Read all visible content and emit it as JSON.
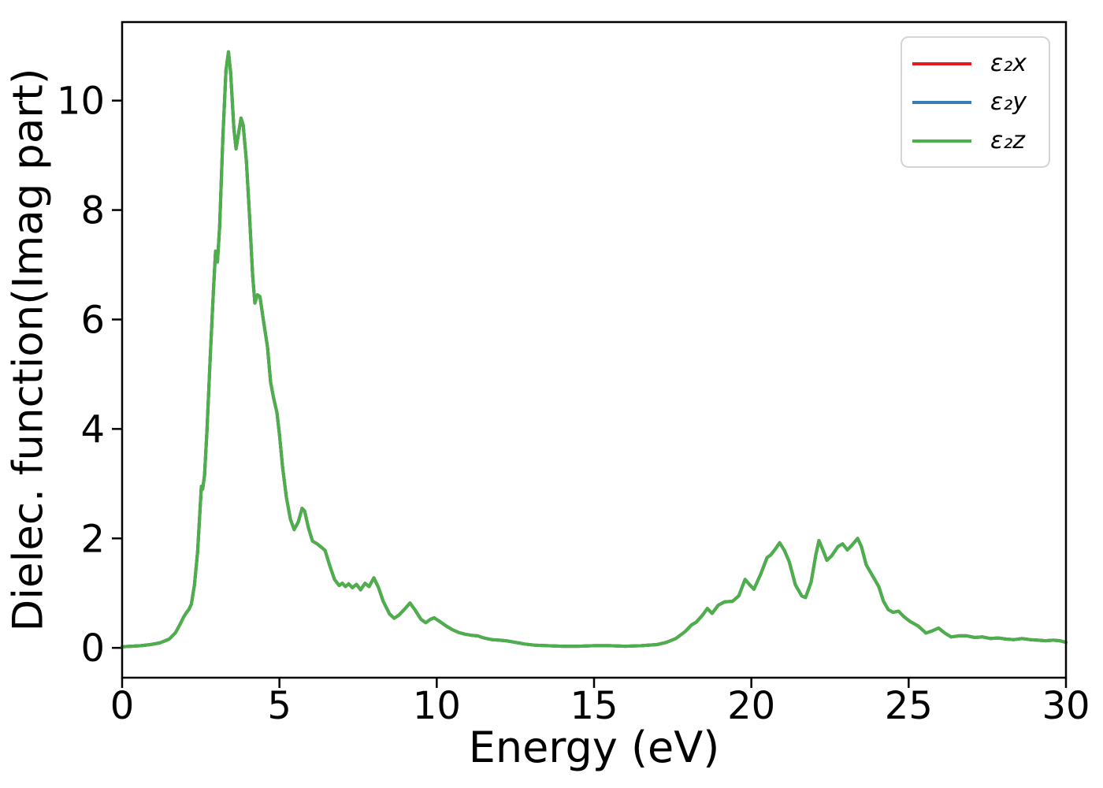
{
  "figure": {
    "xlabel": "Energy (eV)",
    "ylabel": "Dielec. function(Imag part)"
  },
  "legend": {
    "items": [
      {
        "label": "ε₂x",
        "color": "#e41a1c"
      },
      {
        "label": "ε₂y",
        "color": "#377eb8"
      },
      {
        "label": "ε₂z",
        "color": "#4daf4a"
      }
    ]
  },
  "chart_data": {
    "type": "line",
    "title": "",
    "xlabel": "Energy (eV)",
    "ylabel": "Dielec. function(Imag part)",
    "xlim": [
      0,
      30
    ],
    "ylim": [
      -0.545,
      11.435
    ],
    "x_ticks": [
      0,
      5,
      10,
      15,
      20,
      25,
      30
    ],
    "y_ticks": [
      0,
      2,
      4,
      6,
      8,
      10
    ],
    "grid": false,
    "legend_position": "upper right",
    "note": "The three series overlap exactly; only the last-drawn green curve (ε₂z) is visible.",
    "x": [
      0.0,
      0.3,
      0.6,
      0.9,
      1.2,
      1.5,
      1.7,
      1.85,
      1.95,
      2.05,
      2.12,
      2.2,
      2.3,
      2.4,
      2.47,
      2.52,
      2.56,
      2.62,
      2.7,
      2.8,
      2.9,
      2.97,
      3.03,
      3.1,
      3.2,
      3.3,
      3.38,
      3.45,
      3.55,
      3.62,
      3.7,
      3.78,
      3.85,
      3.95,
      4.05,
      4.15,
      4.22,
      4.3,
      4.38,
      4.5,
      4.62,
      4.72,
      4.82,
      4.92,
      5.0,
      5.1,
      5.22,
      5.35,
      5.47,
      5.6,
      5.72,
      5.8,
      5.92,
      6.05,
      6.2,
      6.35,
      6.45,
      6.6,
      6.75,
      6.9,
      7.0,
      7.1,
      7.2,
      7.32,
      7.45,
      7.58,
      7.72,
      7.85,
      8.0,
      8.15,
      8.3,
      8.5,
      8.65,
      8.8,
      9.0,
      9.15,
      9.3,
      9.5,
      9.65,
      9.8,
      9.92,
      10.1,
      10.3,
      10.5,
      10.7,
      10.9,
      11.1,
      11.3,
      11.5,
      11.75,
      12.0,
      12.2,
      12.5,
      12.8,
      13.1,
      13.5,
      14.0,
      14.5,
      15.0,
      15.5,
      16.0,
      16.5,
      17.0,
      17.3,
      17.6,
      17.9,
      18.1,
      18.25,
      18.45,
      18.6,
      18.75,
      18.95,
      19.15,
      19.4,
      19.6,
      19.8,
      19.95,
      20.08,
      20.3,
      20.5,
      20.62,
      20.78,
      20.9,
      21.05,
      21.2,
      21.4,
      21.6,
      21.72,
      21.9,
      22.05,
      22.15,
      22.28,
      22.4,
      22.55,
      22.75,
      22.9,
      23.05,
      23.2,
      23.38,
      23.5,
      23.65,
      23.85,
      24.05,
      24.2,
      24.35,
      24.5,
      24.68,
      24.85,
      25.05,
      25.3,
      25.55,
      25.75,
      25.95,
      26.15,
      26.35,
      26.6,
      26.85,
      27.1,
      27.35,
      27.6,
      27.85,
      28.1,
      28.35,
      28.6,
      28.85,
      29.1,
      29.35,
      29.6,
      29.8,
      30.0
    ],
    "series": [
      {
        "name": "ε₂x",
        "color": "#e41a1c",
        "values": [
          0.02,
          0.03,
          0.04,
          0.06,
          0.09,
          0.16,
          0.28,
          0.44,
          0.56,
          0.65,
          0.7,
          0.8,
          1.15,
          1.75,
          2.45,
          2.95,
          2.9,
          3.15,
          4.0,
          5.3,
          6.5,
          7.25,
          7.05,
          7.7,
          9.3,
          10.55,
          10.89,
          10.5,
          9.5,
          9.12,
          9.4,
          9.68,
          9.55,
          8.9,
          7.9,
          6.8,
          6.3,
          6.45,
          6.42,
          5.95,
          5.5,
          4.85,
          4.55,
          4.3,
          3.9,
          3.3,
          2.75,
          2.35,
          2.16,
          2.3,
          2.55,
          2.5,
          2.2,
          1.95,
          1.9,
          1.83,
          1.78,
          1.5,
          1.25,
          1.14,
          1.18,
          1.12,
          1.17,
          1.1,
          1.16,
          1.06,
          1.18,
          1.12,
          1.28,
          1.1,
          0.85,
          0.62,
          0.54,
          0.6,
          0.72,
          0.82,
          0.7,
          0.52,
          0.46,
          0.52,
          0.55,
          0.48,
          0.4,
          0.33,
          0.28,
          0.25,
          0.23,
          0.22,
          0.18,
          0.15,
          0.14,
          0.13,
          0.1,
          0.07,
          0.05,
          0.04,
          0.03,
          0.03,
          0.04,
          0.04,
          0.03,
          0.04,
          0.06,
          0.1,
          0.17,
          0.3,
          0.42,
          0.47,
          0.6,
          0.72,
          0.63,
          0.78,
          0.84,
          0.85,
          0.95,
          1.25,
          1.15,
          1.07,
          1.35,
          1.65,
          1.7,
          1.82,
          1.92,
          1.78,
          1.58,
          1.15,
          0.95,
          0.92,
          1.2,
          1.7,
          1.96,
          1.78,
          1.6,
          1.68,
          1.85,
          1.9,
          1.79,
          1.88,
          2.0,
          1.85,
          1.52,
          1.32,
          1.12,
          0.85,
          0.7,
          0.65,
          0.67,
          0.57,
          0.48,
          0.4,
          0.27,
          0.31,
          0.36,
          0.27,
          0.2,
          0.22,
          0.22,
          0.19,
          0.2,
          0.17,
          0.18,
          0.16,
          0.15,
          0.17,
          0.15,
          0.14,
          0.13,
          0.14,
          0.13,
          0.1
        ]
      },
      {
        "name": "ε₂y",
        "color": "#377eb8",
        "values": [
          0.02,
          0.03,
          0.04,
          0.06,
          0.09,
          0.16,
          0.28,
          0.44,
          0.56,
          0.65,
          0.7,
          0.8,
          1.15,
          1.75,
          2.45,
          2.95,
          2.9,
          3.15,
          4.0,
          5.3,
          6.5,
          7.25,
          7.05,
          7.7,
          9.3,
          10.55,
          10.89,
          10.5,
          9.5,
          9.12,
          9.4,
          9.68,
          9.55,
          8.9,
          7.9,
          6.8,
          6.3,
          6.45,
          6.42,
          5.95,
          5.5,
          4.85,
          4.55,
          4.3,
          3.9,
          3.3,
          2.75,
          2.35,
          2.16,
          2.3,
          2.55,
          2.5,
          2.2,
          1.95,
          1.9,
          1.83,
          1.78,
          1.5,
          1.25,
          1.14,
          1.18,
          1.12,
          1.17,
          1.1,
          1.16,
          1.06,
          1.18,
          1.12,
          1.28,
          1.1,
          0.85,
          0.62,
          0.54,
          0.6,
          0.72,
          0.82,
          0.7,
          0.52,
          0.46,
          0.52,
          0.55,
          0.48,
          0.4,
          0.33,
          0.28,
          0.25,
          0.23,
          0.22,
          0.18,
          0.15,
          0.14,
          0.13,
          0.1,
          0.07,
          0.05,
          0.04,
          0.03,
          0.03,
          0.04,
          0.04,
          0.03,
          0.04,
          0.06,
          0.1,
          0.17,
          0.3,
          0.42,
          0.47,
          0.6,
          0.72,
          0.63,
          0.78,
          0.84,
          0.85,
          0.95,
          1.25,
          1.15,
          1.07,
          1.35,
          1.65,
          1.7,
          1.82,
          1.92,
          1.78,
          1.58,
          1.15,
          0.95,
          0.92,
          1.2,
          1.7,
          1.96,
          1.78,
          1.6,
          1.68,
          1.85,
          1.9,
          1.79,
          1.88,
          2.0,
          1.85,
          1.52,
          1.32,
          1.12,
          0.85,
          0.7,
          0.65,
          0.67,
          0.57,
          0.48,
          0.4,
          0.27,
          0.31,
          0.36,
          0.27,
          0.2,
          0.22,
          0.22,
          0.19,
          0.2,
          0.17,
          0.18,
          0.16,
          0.15,
          0.17,
          0.15,
          0.14,
          0.13,
          0.14,
          0.13,
          0.1
        ]
      },
      {
        "name": "ε₂z",
        "color": "#4daf4a",
        "values": [
          0.02,
          0.03,
          0.04,
          0.06,
          0.09,
          0.16,
          0.28,
          0.44,
          0.56,
          0.65,
          0.7,
          0.8,
          1.15,
          1.75,
          2.45,
          2.95,
          2.9,
          3.15,
          4.0,
          5.3,
          6.5,
          7.25,
          7.05,
          7.7,
          9.3,
          10.55,
          10.89,
          10.5,
          9.5,
          9.12,
          9.4,
          9.68,
          9.55,
          8.9,
          7.9,
          6.8,
          6.3,
          6.45,
          6.42,
          5.95,
          5.5,
          4.85,
          4.55,
          4.3,
          3.9,
          3.3,
          2.75,
          2.35,
          2.16,
          2.3,
          2.55,
          2.5,
          2.2,
          1.95,
          1.9,
          1.83,
          1.78,
          1.5,
          1.25,
          1.14,
          1.18,
          1.12,
          1.17,
          1.1,
          1.16,
          1.06,
          1.18,
          1.12,
          1.28,
          1.1,
          0.85,
          0.62,
          0.54,
          0.6,
          0.72,
          0.82,
          0.7,
          0.52,
          0.46,
          0.52,
          0.55,
          0.48,
          0.4,
          0.33,
          0.28,
          0.25,
          0.23,
          0.22,
          0.18,
          0.15,
          0.14,
          0.13,
          0.1,
          0.07,
          0.05,
          0.04,
          0.03,
          0.03,
          0.04,
          0.04,
          0.03,
          0.04,
          0.06,
          0.1,
          0.17,
          0.3,
          0.42,
          0.47,
          0.6,
          0.72,
          0.63,
          0.78,
          0.84,
          0.85,
          0.95,
          1.25,
          1.15,
          1.07,
          1.35,
          1.65,
          1.7,
          1.82,
          1.92,
          1.78,
          1.58,
          1.15,
          0.95,
          0.92,
          1.2,
          1.7,
          1.96,
          1.78,
          1.6,
          1.68,
          1.85,
          1.9,
          1.79,
          1.88,
          2.0,
          1.85,
          1.52,
          1.32,
          1.12,
          0.85,
          0.7,
          0.65,
          0.67,
          0.57,
          0.48,
          0.4,
          0.27,
          0.31,
          0.36,
          0.27,
          0.2,
          0.22,
          0.22,
          0.19,
          0.2,
          0.17,
          0.18,
          0.16,
          0.15,
          0.17,
          0.15,
          0.14,
          0.13,
          0.14,
          0.13,
          0.1
        ]
      }
    ]
  }
}
